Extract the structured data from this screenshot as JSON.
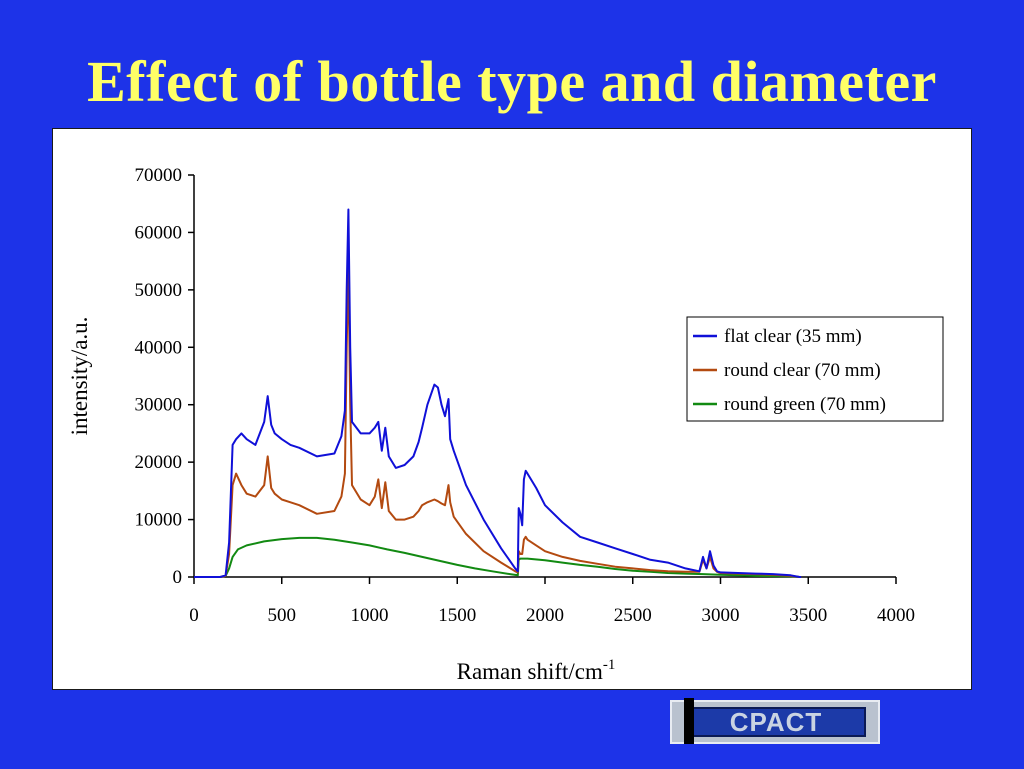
{
  "slide": {
    "title": "Effect of bottle type and diameter",
    "logo_text": "CPACT"
  },
  "colors": {
    "background": "#1d33e8",
    "title": "#ffff66",
    "flat_clear": "#1010d8",
    "round_clear": "#b34a10",
    "round_green": "#128a12"
  },
  "chart_data": {
    "type": "line",
    "title": "",
    "xlabel": "Raman shift/cm",
    "xlabel_superscript": "-1",
    "ylabel": "intensity/a.u.",
    "xlim": [
      0,
      4000
    ],
    "ylim": [
      0,
      70000
    ],
    "xticks": [
      0,
      500,
      1000,
      1500,
      2000,
      2500,
      3000,
      3500,
      4000
    ],
    "yticks": [
      0,
      10000,
      20000,
      30000,
      40000,
      50000,
      60000,
      70000
    ],
    "grid": false,
    "legend_position": "right",
    "series": [
      {
        "name": "flat clear (35 mm)",
        "color": "#1010d8",
        "x": [
          0,
          150,
          180,
          200,
          220,
          240,
          270,
          300,
          350,
          400,
          420,
          440,
          460,
          500,
          550,
          600,
          700,
          800,
          840,
          860,
          870,
          880,
          890,
          900,
          950,
          1000,
          1030,
          1050,
          1070,
          1090,
          1110,
          1150,
          1200,
          1250,
          1280,
          1300,
          1330,
          1370,
          1390,
          1410,
          1430,
          1450,
          1460,
          1480,
          1550,
          1650,
          1750,
          1830,
          1845,
          1850,
          1860,
          1870,
          1880,
          1890,
          1900,
          1950,
          2000,
          2100,
          2200,
          2300,
          2400,
          2500,
          2600,
          2700,
          2800,
          2880,
          2900,
          2920,
          2940,
          2960,
          2980,
          3000,
          3100,
          3200,
          3300,
          3400,
          3450,
          3460
        ],
        "y": [
          0,
          0,
          300,
          6000,
          23000,
          24000,
          25000,
          24000,
          23000,
          27000,
          31500,
          26500,
          25000,
          24000,
          23000,
          22500,
          21000,
          21500,
          24500,
          29000,
          50000,
          64000,
          40000,
          27000,
          25000,
          25000,
          26000,
          27000,
          22000,
          26000,
          21000,
          19000,
          19500,
          21000,
          23500,
          26000,
          30000,
          33500,
          33000,
          30000,
          28000,
          31000,
          24000,
          22000,
          16000,
          10000,
          5000,
          1500,
          1000,
          12000,
          11000,
          9000,
          17000,
          18500,
          18000,
          15500,
          12500,
          9500,
          7000,
          6000,
          5000,
          4000,
          3000,
          2500,
          1500,
          1000,
          3500,
          1500,
          4500,
          2000,
          1000,
          800,
          700,
          600,
          500,
          300,
          0,
          0
        ]
      },
      {
        "name": "round clear (70 mm)",
        "color": "#b34a10",
        "x": [
          0,
          150,
          180,
          200,
          220,
          240,
          270,
          300,
          350,
          400,
          420,
          440,
          460,
          500,
          550,
          600,
          700,
          800,
          840,
          860,
          870,
          880,
          890,
          900,
          950,
          1000,
          1030,
          1050,
          1070,
          1090,
          1110,
          1150,
          1200,
          1250,
          1280,
          1300,
          1330,
          1370,
          1390,
          1410,
          1430,
          1450,
          1460,
          1480,
          1550,
          1650,
          1750,
          1830,
          1845,
          1850,
          1860,
          1870,
          1880,
          1890,
          1900,
          1950,
          2000,
          2100,
          2200,
          2300,
          2400,
          2500,
          2600,
          2700,
          2800,
          2880,
          2900,
          2920,
          2940,
          2960,
          2980,
          3000,
          3100,
          3200,
          3300,
          3400,
          3450,
          3460
        ],
        "y": [
          0,
          0,
          200,
          4000,
          16000,
          18000,
          16000,
          14500,
          14000,
          16000,
          21000,
          15500,
          14500,
          13500,
          13000,
          12500,
          11000,
          11500,
          14000,
          18000,
          40000,
          55000,
          30000,
          16000,
          13500,
          12500,
          14000,
          17000,
          12000,
          16500,
          11500,
          10000,
          10000,
          10500,
          11500,
          12500,
          13000,
          13500,
          13200,
          12800,
          12500,
          16000,
          13000,
          10500,
          7500,
          4500,
          2500,
          1000,
          800,
          4500,
          4000,
          4000,
          6500,
          7000,
          6500,
          5500,
          4500,
          3500,
          2800,
          2300,
          1800,
          1500,
          1200,
          1000,
          900,
          900,
          3000,
          1500,
          3500,
          1500,
          900,
          700,
          600,
          500,
          400,
          200,
          0,
          0
        ]
      },
      {
        "name": "round green (70 mm)",
        "color": "#128a12",
        "x": [
          0,
          150,
          180,
          200,
          220,
          250,
          300,
          400,
          500,
          600,
          700,
          800,
          900,
          1000,
          1100,
          1200,
          1300,
          1400,
          1500,
          1600,
          1700,
          1800,
          1845,
          1850,
          1860,
          1880,
          1900,
          2000,
          2100,
          2200,
          2300,
          2400,
          2500,
          2600,
          2700,
          2800,
          2900,
          3000,
          3100,
          3200,
          3300,
          3400,
          3450,
          3460
        ],
        "y": [
          0,
          0,
          200,
          1500,
          3500,
          4800,
          5500,
          6200,
          6600,
          6800,
          6800,
          6500,
          6000,
          5500,
          4800,
          4200,
          3500,
          2800,
          2100,
          1500,
          1000,
          500,
          300,
          3000,
          3200,
          3200,
          3200,
          2900,
          2500,
          2100,
          1800,
          1400,
          1100,
          900,
          700,
          600,
          500,
          400,
          300,
          200,
          150,
          100,
          0,
          0
        ]
      }
    ]
  }
}
